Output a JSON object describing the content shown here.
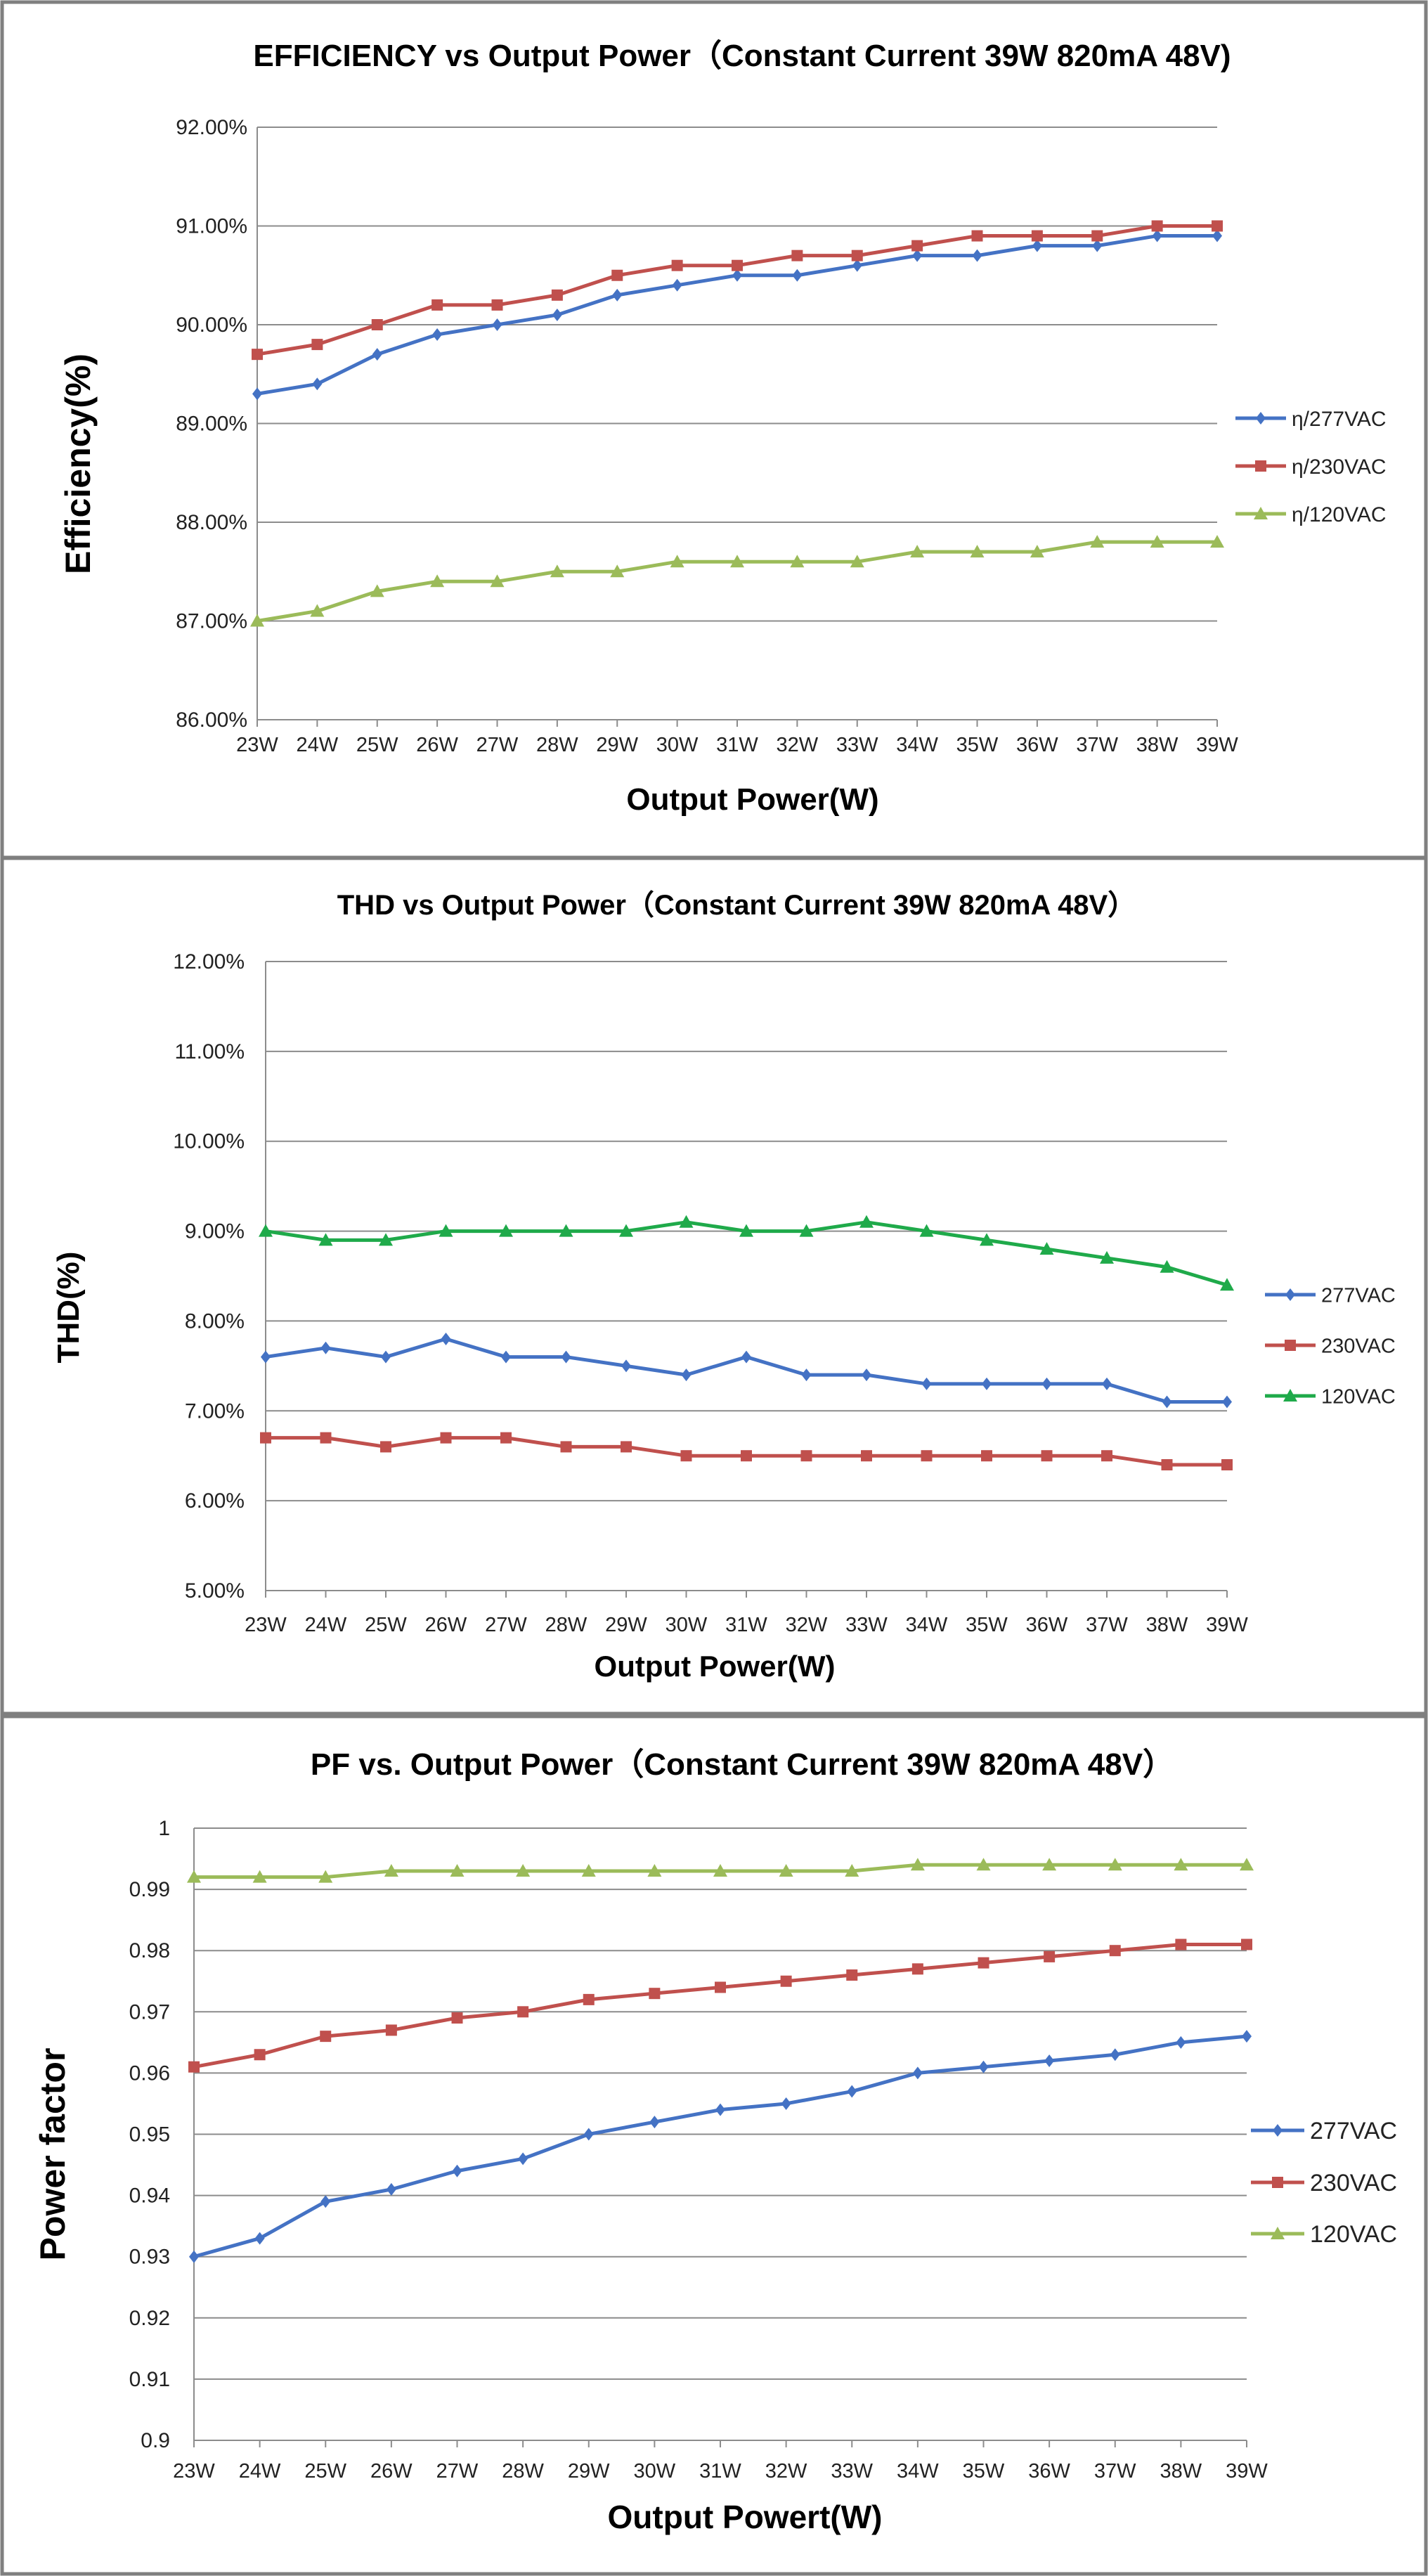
{
  "chart_data": [
    {
      "type": "line",
      "title": "EFFICIENCY vs Output Power（Constant Current 39W 820mA 48V)",
      "xlabel": "Output Power(W)",
      "ylabel": "Efficiency(%)",
      "categories": [
        "23W",
        "24W",
        "25W",
        "26W",
        "27W",
        "28W",
        "29W",
        "30W",
        "31W",
        "32W",
        "33W",
        "34W",
        "35W",
        "36W",
        "37W",
        "38W",
        "39W"
      ],
      "ylim": [
        86.0,
        92.0
      ],
      "ystep": 1.0,
      "ytick_format": "percent2",
      "grid": true,
      "legend_position": "right",
      "series": [
        {
          "name": "η/277VAC",
          "color": "#4472C4",
          "marker": "diamond",
          "values": [
            89.3,
            89.4,
            89.7,
            89.9,
            90.0,
            90.1,
            90.3,
            90.4,
            90.5,
            90.5,
            90.6,
            90.7,
            90.7,
            90.8,
            90.8,
            90.9,
            90.9
          ]
        },
        {
          "name": "η/230VAC",
          "color": "#C0504D",
          "marker": "square",
          "values": [
            89.7,
            89.8,
            90.0,
            90.2,
            90.2,
            90.3,
            90.5,
            90.6,
            90.6,
            90.7,
            90.7,
            90.8,
            90.9,
            90.9,
            90.9,
            91.0,
            91.0
          ]
        },
        {
          "name": "η/120VAC",
          "color": "#9BBB59",
          "marker": "triangle",
          "values": [
            87.0,
            87.1,
            87.3,
            87.4,
            87.4,
            87.5,
            87.5,
            87.6,
            87.6,
            87.6,
            87.6,
            87.7,
            87.7,
            87.7,
            87.8,
            87.8,
            87.8
          ]
        }
      ]
    },
    {
      "type": "line",
      "title": "THD vs Output Power（Constant Current 39W  820mA 48V）",
      "xlabel": "Output Power(W)",
      "ylabel": "THD(%)",
      "categories": [
        "23W",
        "24W",
        "25W",
        "26W",
        "27W",
        "28W",
        "29W",
        "30W",
        "31W",
        "32W",
        "33W",
        "34W",
        "35W",
        "36W",
        "37W",
        "38W",
        "39W"
      ],
      "ylim": [
        5.0,
        12.0
      ],
      "ystep": 1.0,
      "ytick_format": "percent2",
      "grid": true,
      "legend_position": "right",
      "series": [
        {
          "name": "277VAC",
          "color": "#4472C4",
          "marker": "diamond",
          "values": [
            7.6,
            7.7,
            7.6,
            7.8,
            7.6,
            7.6,
            7.5,
            7.4,
            7.6,
            7.4,
            7.4,
            7.3,
            7.3,
            7.3,
            7.3,
            7.1,
            7.1
          ]
        },
        {
          "name": "230VAC",
          "color": "#C0504D",
          "marker": "square",
          "values": [
            6.7,
            6.7,
            6.6,
            6.7,
            6.7,
            6.6,
            6.6,
            6.5,
            6.5,
            6.5,
            6.5,
            6.5,
            6.5,
            6.5,
            6.5,
            6.4,
            6.4
          ]
        },
        {
          "name": "120VAC",
          "color": "#1FAA4A",
          "marker": "triangle",
          "values": [
            9.0,
            8.9,
            8.9,
            9.0,
            9.0,
            9.0,
            9.0,
            9.1,
            9.0,
            9.0,
            9.1,
            9.0,
            8.9,
            8.8,
            8.7,
            8.6,
            8.4
          ]
        }
      ]
    },
    {
      "type": "line",
      "title": "PF vs. Output Power（Constant Current 39W 820mA 48V）",
      "xlabel": "Output Powert(W)",
      "ylabel": "Power factor",
      "categories": [
        "23W",
        "24W",
        "25W",
        "26W",
        "27W",
        "28W",
        "29W",
        "30W",
        "31W",
        "32W",
        "33W",
        "34W",
        "35W",
        "36W",
        "37W",
        "38W",
        "39W"
      ],
      "ylim": [
        0.9,
        1.0
      ],
      "ystep": 0.01,
      "ytick_format": "plain",
      "grid": true,
      "legend_position": "right",
      "series": [
        {
          "name": "277VAC",
          "color": "#4472C4",
          "marker": "diamond",
          "values": [
            0.93,
            0.933,
            0.939,
            0.941,
            0.944,
            0.946,
            0.95,
            0.952,
            0.954,
            0.955,
            0.957,
            0.96,
            0.961,
            0.962,
            0.963,
            0.965,
            0.966
          ]
        },
        {
          "name": "230VAC",
          "color": "#C0504D",
          "marker": "square",
          "values": [
            0.961,
            0.963,
            0.966,
            0.967,
            0.969,
            0.97,
            0.972,
            0.973,
            0.974,
            0.975,
            0.976,
            0.977,
            0.978,
            0.979,
            0.98,
            0.981,
            0.981
          ]
        },
        {
          "name": "120VAC",
          "color": "#9BBB59",
          "marker": "triangle",
          "values": [
            0.992,
            0.992,
            0.992,
            0.993,
            0.993,
            0.993,
            0.993,
            0.993,
            0.993,
            0.993,
            0.993,
            0.994,
            0.994,
            0.994,
            0.994,
            0.994,
            0.994
          ]
        }
      ]
    }
  ]
}
